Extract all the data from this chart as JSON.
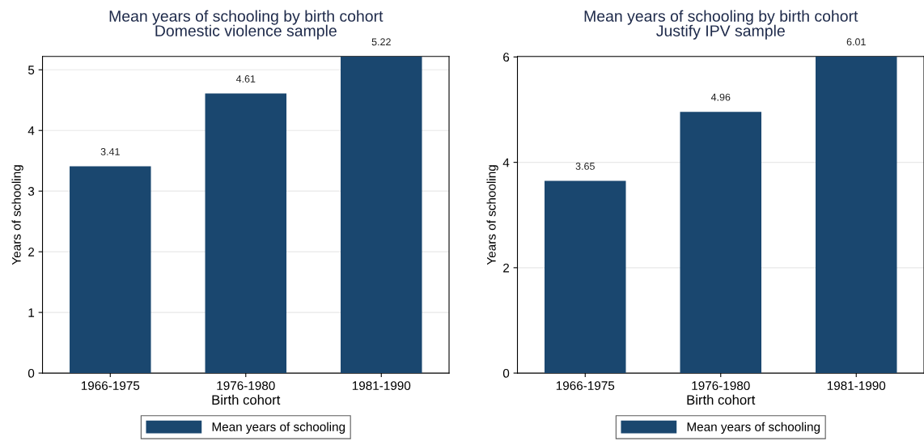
{
  "chart_data": [
    {
      "type": "bar",
      "title": "Mean years of schooling by birth cohort",
      "subtitle": "Domestic violence sample",
      "xlabel": "Birth cohort",
      "ylabel": "Years of schooling",
      "categories": [
        "1966-1975",
        "1976-1980",
        "1981-1990"
      ],
      "series": [
        {
          "name": "Mean years of schooling",
          "color": "#1a476f",
          "values": [
            3.41,
            4.61,
            5.22
          ]
        }
      ],
      "ylim": [
        0,
        5.22
      ],
      "yticks": [
        0,
        1,
        2,
        3,
        4,
        5
      ],
      "grid": "y",
      "legend": "bottom",
      "data_labels": true
    },
    {
      "type": "bar",
      "title": "Mean years of schooling by birth cohort",
      "subtitle": "Justify IPV sample",
      "xlabel": "Birth cohort",
      "ylabel": "Years of schooling",
      "categories": [
        "1966-1975",
        "1976-1980",
        "1981-1990"
      ],
      "series": [
        {
          "name": "Mean years of schooling",
          "color": "#1a476f",
          "values": [
            3.65,
            4.96,
            6.01
          ]
        }
      ],
      "ylim": [
        0,
        6.01
      ],
      "yticks": [
        0,
        2,
        4,
        6
      ],
      "grid": "y",
      "legend": "bottom",
      "data_labels": true
    }
  ]
}
